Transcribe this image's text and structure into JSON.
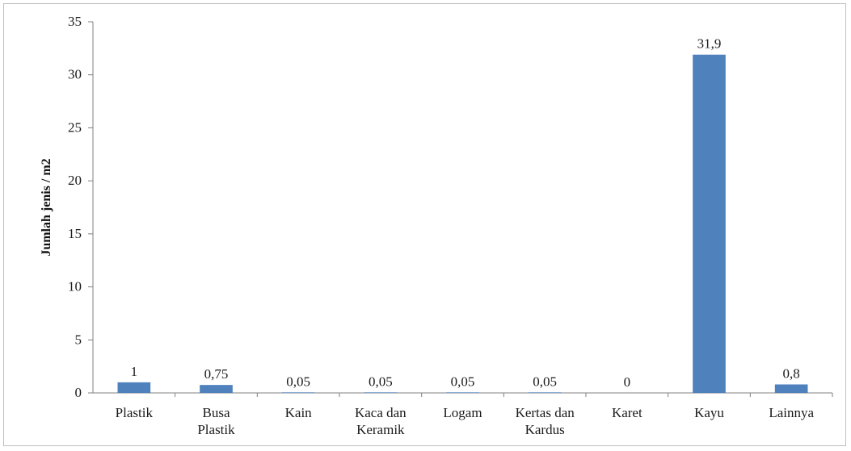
{
  "chart_data": {
    "type": "bar",
    "title": "",
    "xlabel": "",
    "ylabel": "Jumlah jenis / m2",
    "ylim": [
      0,
      35
    ],
    "yticks": [
      0,
      5,
      10,
      15,
      20,
      25,
      30,
      35
    ],
    "grid": false,
    "legend": "none",
    "bar_color": "#4f81bd",
    "categories": [
      [
        "Plastik"
      ],
      [
        "Busa",
        "Plastik"
      ],
      [
        "Kain"
      ],
      [
        "Kaca dan",
        "Keramik"
      ],
      [
        "Logam"
      ],
      [
        "Kertas dan",
        "Kardus"
      ],
      [
        "Karet"
      ],
      [
        "Kayu"
      ],
      [
        "Lainnya"
      ]
    ],
    "values": [
      1,
      0.75,
      0.05,
      0.05,
      0.05,
      0.05,
      0,
      31.9,
      0.8
    ],
    "data_labels": [
      "1",
      "0,75",
      "0,05",
      "0,05",
      "0,05",
      "0,05",
      "0",
      "31,9",
      "0,8"
    ]
  }
}
